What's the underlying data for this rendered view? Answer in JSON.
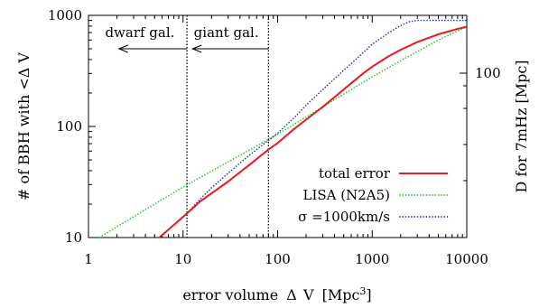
{
  "chart_data": {
    "type": "line",
    "title": "",
    "xlabel": "error volume",
    "xlabel_symbol": "Δ",
    "xlabel_var": "V",
    "xlabel_unit_pre": "[Mpc",
    "xlabel_unit_exp": "3",
    "xlabel_unit_post": "]",
    "ylabel": "# of BBH with <Δ V",
    "y2label": "D for 7mHz [Mpc]",
    "xscale": "log",
    "yscale": "log",
    "xlim": [
      1,
      10000
    ],
    "ylim": [
      10,
      1000
    ],
    "grid": false,
    "legend_position": "lower-right",
    "x_ticks": [
      {
        "value": 1,
        "label": "1"
      },
      {
        "value": 10,
        "label": "10"
      },
      {
        "value": 100,
        "label": "100"
      },
      {
        "value": 1000,
        "label": "1000"
      },
      {
        "value": 10000,
        "label": "10000"
      }
    ],
    "y_ticks": [
      {
        "value": 10,
        "label": "10"
      },
      {
        "value": 100,
        "label": "100"
      },
      {
        "value": 1000,
        "label": "1000"
      }
    ],
    "y2_ticks": [
      {
        "value": 100,
        "label": "100"
      }
    ],
    "y2_tick_position_y": 81,
    "series": [
      {
        "name": "total error",
        "color": "#e8191f",
        "style": "solid",
        "x": [
          5.6,
          8,
          11,
          15,
          20,
          30,
          50,
          80,
          100,
          150,
          200,
          300,
          500,
          800,
          1000,
          1500,
          2000,
          3000,
          5000,
          8000,
          10000
        ],
        "y": [
          10,
          13,
          16.5,
          21,
          25,
          32,
          45,
          62,
          71,
          95,
          115,
          150,
          215,
          300,
          345,
          430,
          490,
          575,
          675,
          755,
          790
        ]
      },
      {
        "name": "LISA (N2A5)",
        "color": "#18c418",
        "style": "dotted",
        "x": [
          1.3,
          2,
          5,
          10,
          30,
          100,
          300,
          1000,
          2000,
          5000,
          10000
        ],
        "y": [
          10,
          12.5,
          20,
          28.5,
          48,
          85,
          150,
          280,
          390,
          600,
          790
        ]
      },
      {
        "name": "σ =1000km/s",
        "color": "#1c28d6",
        "style": "dotted",
        "x": [
          5.6,
          8,
          11,
          15,
          20,
          30,
          50,
          80,
          100,
          150,
          200,
          300,
          500,
          800,
          1000,
          1500,
          2000,
          2500,
          3000,
          5000,
          10000
        ],
        "y": [
          10,
          13,
          16.5,
          22,
          28,
          38,
          55,
          75,
          87,
          120,
          155,
          215,
          320,
          460,
          550,
          700,
          810,
          880,
          900,
          900,
          900
        ]
      }
    ],
    "vlines": [
      {
        "x": 11,
        "style": "dotted",
        "color": "#000000"
      },
      {
        "x": 80,
        "style": "dotted",
        "color": "#000000"
      }
    ],
    "annotations": [
      {
        "text": "dwarf gal.",
        "x": 1.5,
        "arrow_from_x": 11,
        "arrow_to_x": 2.1
      },
      {
        "text": "giant gal.",
        "x": 13,
        "arrow_from_x": 80,
        "arrow_to_x": 12.6
      }
    ]
  }
}
